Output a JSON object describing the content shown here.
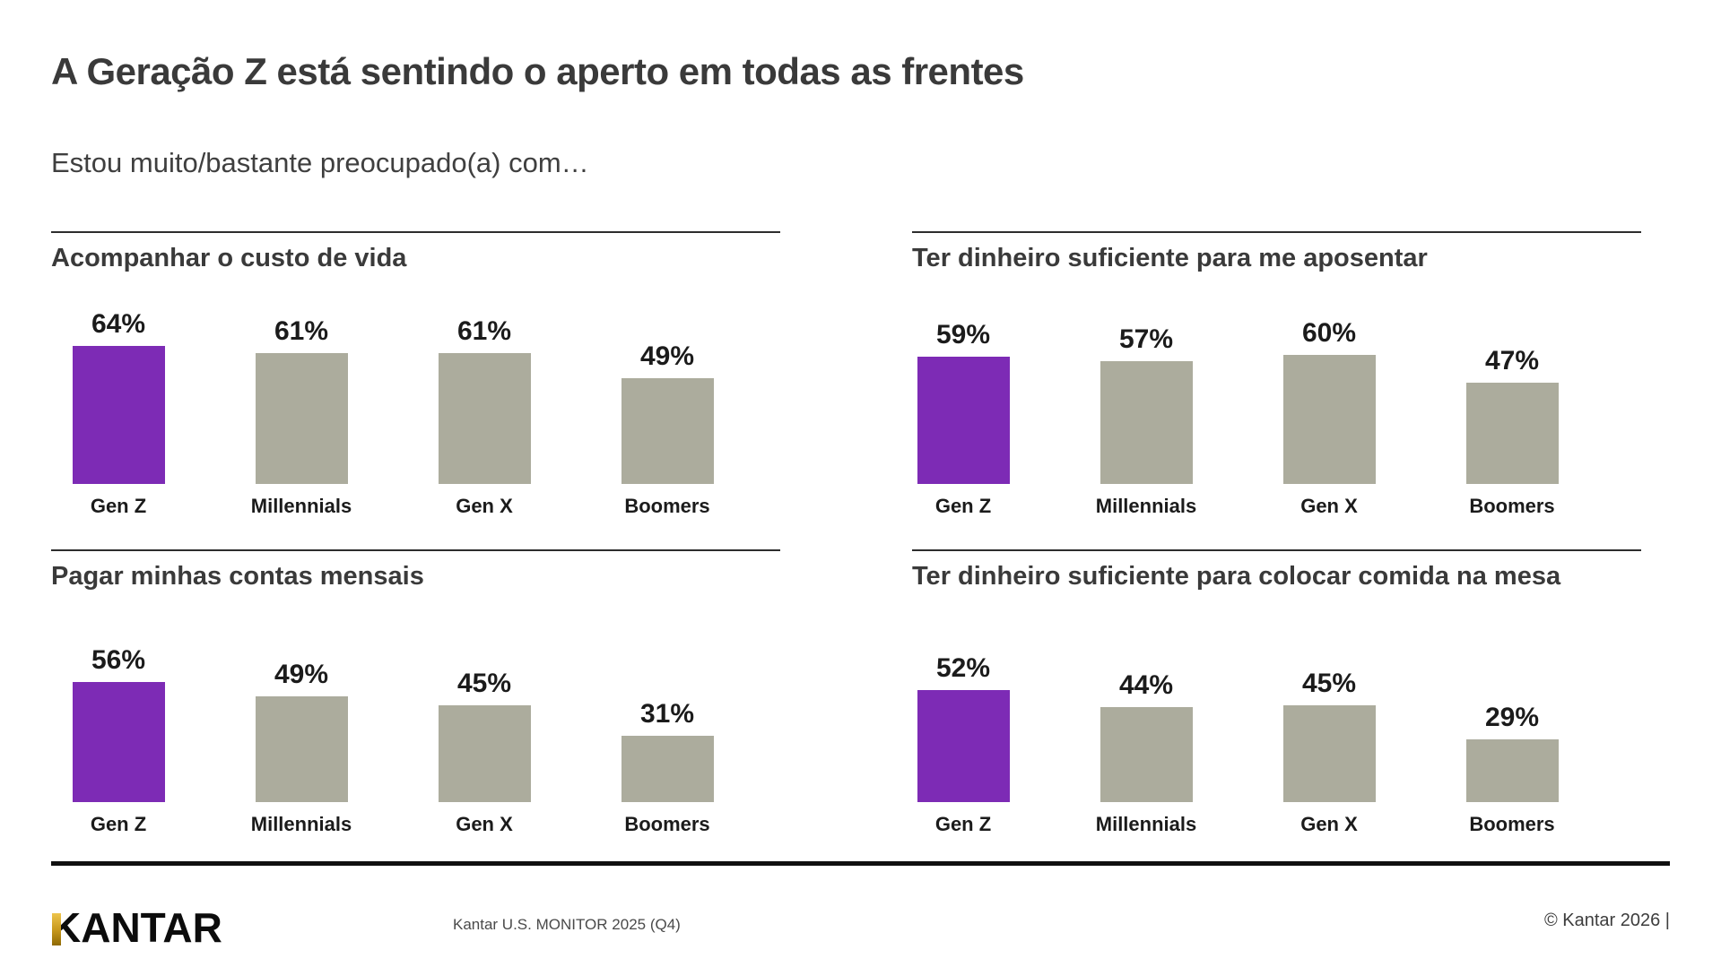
{
  "slide": {
    "title": "A Geração Z está sentindo o aperto em todas as frentes",
    "subtitle": "Estou muito/bastante preocupado(a) com…"
  },
  "colors": {
    "highlight_purple": "#7D2BB5",
    "bar_gray": "#ACAC9D",
    "gold_accent": "#C99A1E",
    "text_dark": "#3a3a3a",
    "label_black": "#1b1b1b"
  },
  "chart_data": [
    {
      "type": "bar",
      "title": "Acompanhar o custo de vida",
      "categories": [
        "Gen Z",
        "Millennials",
        "Gen X",
        "Boomers"
      ],
      "values": [
        64,
        61,
        61,
        49
      ],
      "unit": "%",
      "highlight_index": 0,
      "highlight_category": "Gen Z",
      "ylim": [
        0,
        100
      ],
      "grid": false,
      "legend": "none"
    },
    {
      "type": "bar",
      "title": "Ter dinheiro suficiente para me aposentar",
      "categories": [
        "Gen Z",
        "Millennials",
        "Gen X",
        "Boomers"
      ],
      "values": [
        59,
        57,
        60,
        47
      ],
      "unit": "%",
      "highlight_index": 0,
      "highlight_category": "Gen Z",
      "ylim": [
        0,
        100
      ],
      "grid": false,
      "legend": "none"
    },
    {
      "type": "bar",
      "title": "Pagar minhas contas mensais",
      "categories": [
        "Gen Z",
        "Millennials",
        "Gen X",
        "Boomers"
      ],
      "values": [
        56,
        49,
        45,
        31
      ],
      "unit": "%",
      "highlight_index": 0,
      "highlight_category": "Gen Z",
      "ylim": [
        0,
        100
      ],
      "grid": false,
      "legend": "none"
    },
    {
      "type": "bar",
      "title": "Ter dinheiro suficiente para colocar comida na mesa",
      "categories": [
        "Gen Z",
        "Millennials",
        "Gen X",
        "Boomers"
      ],
      "values": [
        52,
        44,
        45,
        29
      ],
      "unit": "%",
      "highlight_index": 0,
      "highlight_category": "Gen Z",
      "ylim": [
        0,
        100
      ],
      "grid": false,
      "legend": "none"
    }
  ],
  "footer": {
    "logo_text": "KANTAR",
    "source": "Kantar U.S. MONITOR 2025 (Q4)",
    "copyright": "© Kantar 2026 |"
  }
}
